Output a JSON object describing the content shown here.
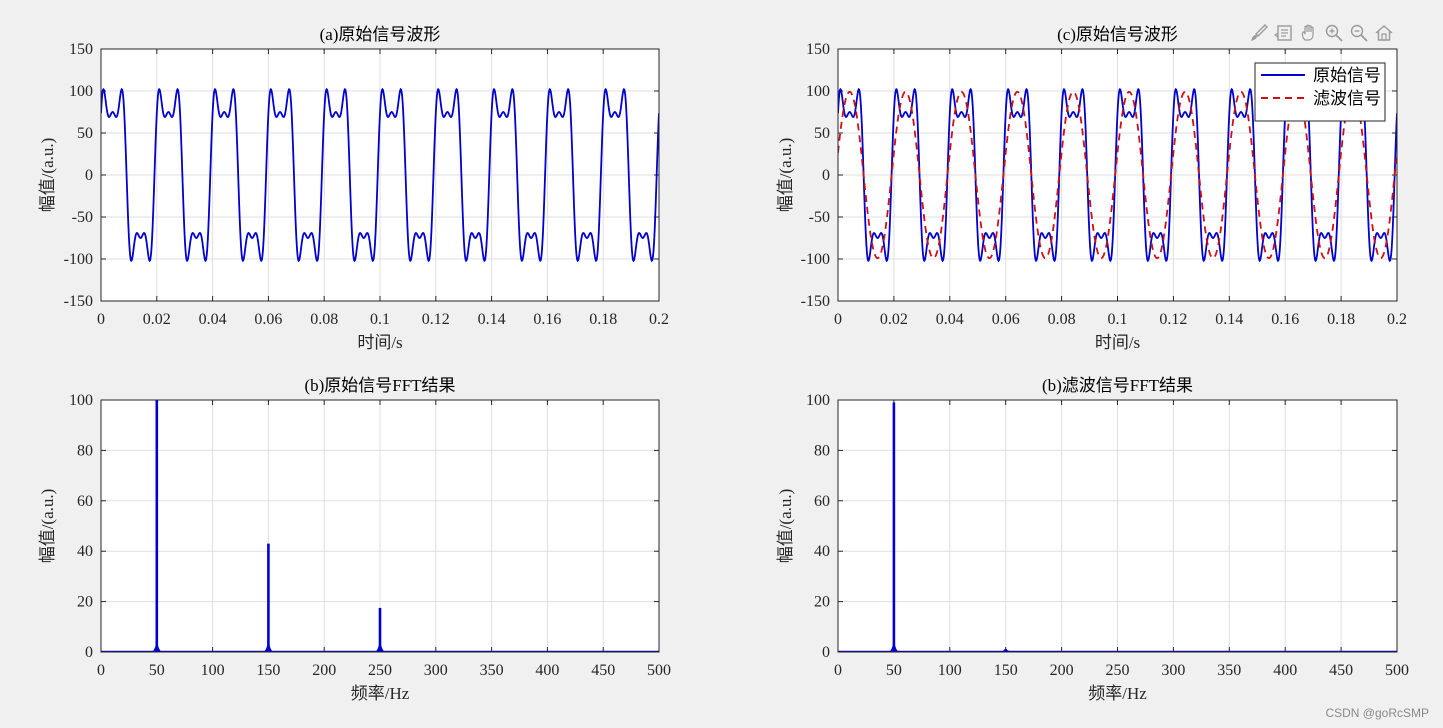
{
  "watermark": "CSDN @goRcSMP",
  "toolbar": {
    "icons": [
      "brush-icon",
      "data-tip-icon",
      "pan-hand-icon",
      "zoom-in-icon",
      "zoom-out-icon",
      "home-icon"
    ]
  },
  "chart_data": [
    {
      "type": "line",
      "title": "(a)原始信号波形",
      "xlabel": "时间/s",
      "ylabel": "幅值/(a.u.)",
      "xlim": [
        0,
        0.2
      ],
      "ylim": [
        -150,
        150
      ],
      "xticks": [
        "0",
        "0.02",
        "0.04",
        "0.06",
        "0.08",
        "0.1",
        "0.12",
        "0.14",
        "0.16",
        "0.18",
        "0.2"
      ],
      "yticks": [
        "-150",
        "-100",
        "-50",
        "0",
        "50",
        "100",
        "150"
      ],
      "grid": true,
      "series": [
        {
          "color": "#0000d0",
          "style": "solid",
          "signal": {
            "fundamental_hz": 50,
            "harmonics": [
              [
                1,
                100
              ],
              [
                3,
                43
              ],
              [
                5,
                18
              ]
            ],
            "phase_deg": 15
          }
        }
      ]
    },
    {
      "type": "line",
      "title": "(c)原始信号波形",
      "xlabel": "时间/s",
      "ylabel": "幅值/(a.u.)",
      "xlim": [
        0,
        0.2
      ],
      "ylim": [
        -150,
        150
      ],
      "xticks": [
        "0",
        "0.02",
        "0.04",
        "0.06",
        "0.08",
        "0.1",
        "0.12",
        "0.14",
        "0.16",
        "0.18",
        "0.2"
      ],
      "yticks": [
        "-150",
        "-100",
        "-50",
        "0",
        "50",
        "100",
        "150"
      ],
      "grid": true,
      "legend_position": "top-right",
      "series": [
        {
          "name": "原始信号",
          "color": "#0000d0",
          "style": "solid",
          "signal": {
            "fundamental_hz": 50,
            "harmonics": [
              [
                1,
                100
              ],
              [
                3,
                43
              ],
              [
                5,
                18
              ]
            ],
            "phase_deg": 15
          }
        },
        {
          "name": "滤波信号",
          "color": "#d01010",
          "style": "dashed",
          "signal": {
            "fundamental_hz": 50,
            "harmonics": [
              [
                1,
                100
              ],
              [
                3,
                1
              ]
            ],
            "phase_deg": 15
          }
        }
      ]
    },
    {
      "type": "bar",
      "title": "(b)原始信号FFT结果",
      "xlabel": "频率/Hz",
      "ylabel": "幅值/(a.u.)",
      "xlim": [
        0,
        500
      ],
      "ylim": [
        0,
        100
      ],
      "xticks": [
        "0",
        "50",
        "100",
        "150",
        "200",
        "250",
        "300",
        "350",
        "400",
        "450",
        "500"
      ],
      "yticks": [
        "0",
        "20",
        "40",
        "60",
        "80",
        "100"
      ],
      "grid": true,
      "color": "#0000d0",
      "peaks": [
        {
          "x": 50,
          "y": 100
        },
        {
          "x": 150,
          "y": 43
        },
        {
          "x": 250,
          "y": 17.5
        }
      ]
    },
    {
      "type": "bar",
      "title": "(b)滤波信号FFT结果",
      "xlabel": "频率/Hz",
      "ylabel": "幅值/(a.u.)",
      "xlim": [
        0,
        500
      ],
      "ylim": [
        0,
        100
      ],
      "xticks": [
        "0",
        "50",
        "100",
        "150",
        "200",
        "250",
        "300",
        "350",
        "400",
        "450",
        "500"
      ],
      "yticks": [
        "0",
        "20",
        "40",
        "60",
        "80",
        "100"
      ],
      "grid": true,
      "color": "#0000d0",
      "peaks": [
        {
          "x": 50,
          "y": 99
        },
        {
          "x": 150,
          "y": 1.2
        }
      ]
    }
  ]
}
